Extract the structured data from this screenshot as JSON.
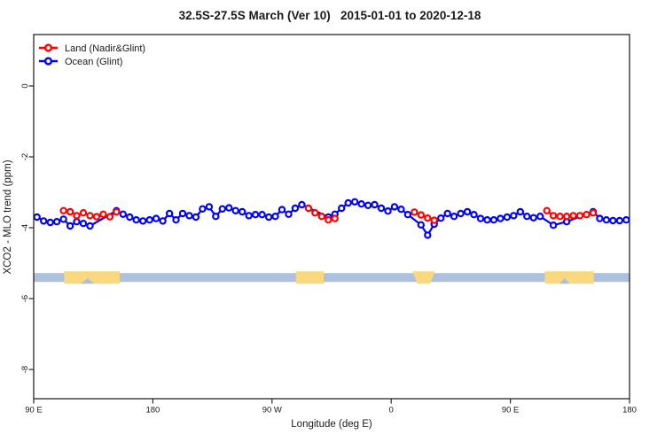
{
  "title": "32.5S-27.5S March (Ver 10)   2015-01-01 to 2020-12-18",
  "chart_data": {
    "type": "line",
    "title": "32.5S-27.5S March (Ver 10)   2015-01-01 to 2020-12-18",
    "xlabel": "Longitude (deg E)",
    "ylabel": "XCO2 - MLO trend (ppm)",
    "xlim": [
      90,
      540
    ],
    "ylim": [
      -8.8,
      1.45
    ],
    "grid": "off",
    "legend_position": "top-left",
    "x_ticks": [
      {
        "lon": 90,
        "label": "90 E"
      },
      {
        "lon": 180,
        "label": "180"
      },
      {
        "lon": 270,
        "label": "90 W"
      },
      {
        "lon": 360,
        "label": "0"
      },
      {
        "lon": 450,
        "label": "90 E"
      },
      {
        "lon": 540,
        "label": "180"
      }
    ],
    "y_ticks": [
      {
        "v": 0,
        "label": "0"
      },
      {
        "v": -2,
        "label": "-2"
      },
      {
        "v": -4,
        "label": "-4"
      },
      {
        "v": -6,
        "label": "-6"
      },
      {
        "v": -8,
        "label": "-8"
      }
    ],
    "legend": [
      {
        "label": "Land (Nadir&Glint)",
        "color": "#ff0000"
      },
      {
        "label": "Ocean (Glint)",
        "color": "#0000ff"
      }
    ],
    "series": [
      {
        "name": "Land (Nadir&Glint)",
        "color": "#ff0000",
        "segments": [
          [
            [
              112.5,
              -3.52
            ],
            [
              117.5,
              -3.55
            ],
            [
              122.5,
              -3.66
            ],
            [
              127.5,
              -3.58
            ],
            [
              132.5,
              -3.66
            ],
            [
              137.5,
              -3.69
            ],
            [
              142.5,
              -3.62
            ],
            [
              147.5,
              -3.69
            ],
            [
              152.5,
              -3.55
            ]
          ],
          [
            [
              297.5,
              -3.45
            ],
            [
              302.5,
              -3.58
            ],
            [
              307.5,
              -3.68
            ],
            [
              312.5,
              -3.78
            ],
            [
              317.5,
              -3.74
            ]
          ],
          [
            [
              377.5,
              -3.56
            ],
            [
              382.5,
              -3.64
            ],
            [
              387.5,
              -3.73
            ],
            [
              392.5,
              -3.79
            ]
          ],
          [
            [
              477.5,
              -3.52
            ],
            [
              482.5,
              -3.66
            ],
            [
              487.5,
              -3.68
            ],
            [
              492.5,
              -3.68
            ],
            [
              497.5,
              -3.66
            ],
            [
              502.5,
              -3.66
            ],
            [
              507.5,
              -3.63
            ],
            [
              512.5,
              -3.58
            ]
          ]
        ]
      },
      {
        "name": "Ocean (Glint)",
        "color": "#0000ff",
        "segments": [
          [
            [
              92.5,
              -3.7
            ],
            [
              97.5,
              -3.81
            ],
            [
              102.5,
              -3.85
            ],
            [
              107.5,
              -3.83
            ],
            [
              112.5,
              -3.76
            ],
            [
              117.5,
              -3.95
            ],
            [
              122.5,
              -3.83
            ],
            [
              127.5,
              -3.88
            ],
            [
              132.5,
              -3.95
            ],
            [
              152.5,
              -3.52
            ],
            [
              157.5,
              -3.62
            ],
            [
              162.5,
              -3.7
            ],
            [
              167.5,
              -3.78
            ],
            [
              172.5,
              -3.81
            ],
            [
              177.5,
              -3.78
            ],
            [
              182.5,
              -3.74
            ],
            [
              187.5,
              -3.81
            ],
            [
              192.5,
              -3.6
            ],
            [
              197.5,
              -3.78
            ],
            [
              202.5,
              -3.6
            ],
            [
              207.5,
              -3.66
            ],
            [
              212.5,
              -3.7
            ],
            [
              217.5,
              -3.47
            ],
            [
              222.5,
              -3.41
            ],
            [
              227.5,
              -3.68
            ],
            [
              232.5,
              -3.47
            ],
            [
              237.5,
              -3.44
            ],
            [
              242.5,
              -3.52
            ],
            [
              247.5,
              -3.55
            ],
            [
              252.5,
              -3.66
            ],
            [
              257.5,
              -3.63
            ],
            [
              262.5,
              -3.63
            ],
            [
              267.5,
              -3.7
            ],
            [
              272.5,
              -3.68
            ],
            [
              277.5,
              -3.49
            ],
            [
              282.5,
              -3.62
            ],
            [
              287.5,
              -3.45
            ],
            [
              292.5,
              -3.35
            ],
            [
              312.5,
              -3.7
            ],
            [
              317.5,
              -3.62
            ],
            [
              322.5,
              -3.45
            ],
            [
              327.5,
              -3.3
            ],
            [
              332.5,
              -3.27
            ],
            [
              337.5,
              -3.33
            ],
            [
              342.5,
              -3.37
            ],
            [
              347.5,
              -3.35
            ],
            [
              352.5,
              -3.45
            ],
            [
              357.5,
              -3.53
            ],
            [
              362.5,
              -3.41
            ],
            [
              367.5,
              -3.48
            ],
            [
              372.5,
              -3.63
            ],
            [
              382.5,
              -3.92
            ],
            [
              387.5,
              -4.21
            ],
            [
              392.5,
              -3.9
            ],
            [
              397.5,
              -3.73
            ],
            [
              402.5,
              -3.6
            ],
            [
              407.5,
              -3.68
            ],
            [
              412.5,
              -3.6
            ],
            [
              417.5,
              -3.55
            ],
            [
              422.5,
              -3.63
            ],
            [
              427.5,
              -3.74
            ],
            [
              432.5,
              -3.78
            ],
            [
              437.5,
              -3.78
            ],
            [
              442.5,
              -3.74
            ],
            [
              447.5,
              -3.7
            ],
            [
              452.5,
              -3.66
            ],
            [
              457.5,
              -3.55
            ],
            [
              462.5,
              -3.68
            ],
            [
              467.5,
              -3.72
            ],
            [
              472.5,
              -3.68
            ],
            [
              482.5,
              -3.93
            ],
            [
              492.5,
              -3.83
            ],
            [
              512.5,
              -3.55
            ],
            [
              517.5,
              -3.74
            ],
            [
              522.5,
              -3.78
            ],
            [
              527.5,
              -3.8
            ],
            [
              532.5,
              -3.8
            ],
            [
              537.5,
              -3.78
            ]
          ]
        ]
      }
    ],
    "land_ocean_strip": {
      "ocean_color": "#adc1de",
      "land_color": "#fad87e",
      "ocean_band_v": [
        -5.28,
        -5.53
      ],
      "land_band_v": [
        -5.23,
        -5.58
      ],
      "land_regions": [
        {
          "from": 113,
          "to": 155,
          "shape": "rect"
        },
        {
          "from": 288,
          "to": 309,
          "shape": "rect"
        },
        {
          "from": 376,
          "to": 393,
          "shape": "trapezoid"
        },
        {
          "from": 476,
          "to": 513,
          "shape": "rect"
        }
      ],
      "ocean_notches": [
        {
          "from": 125.5,
          "to": 136
        },
        {
          "from": 487,
          "to": 495
        }
      ]
    }
  }
}
